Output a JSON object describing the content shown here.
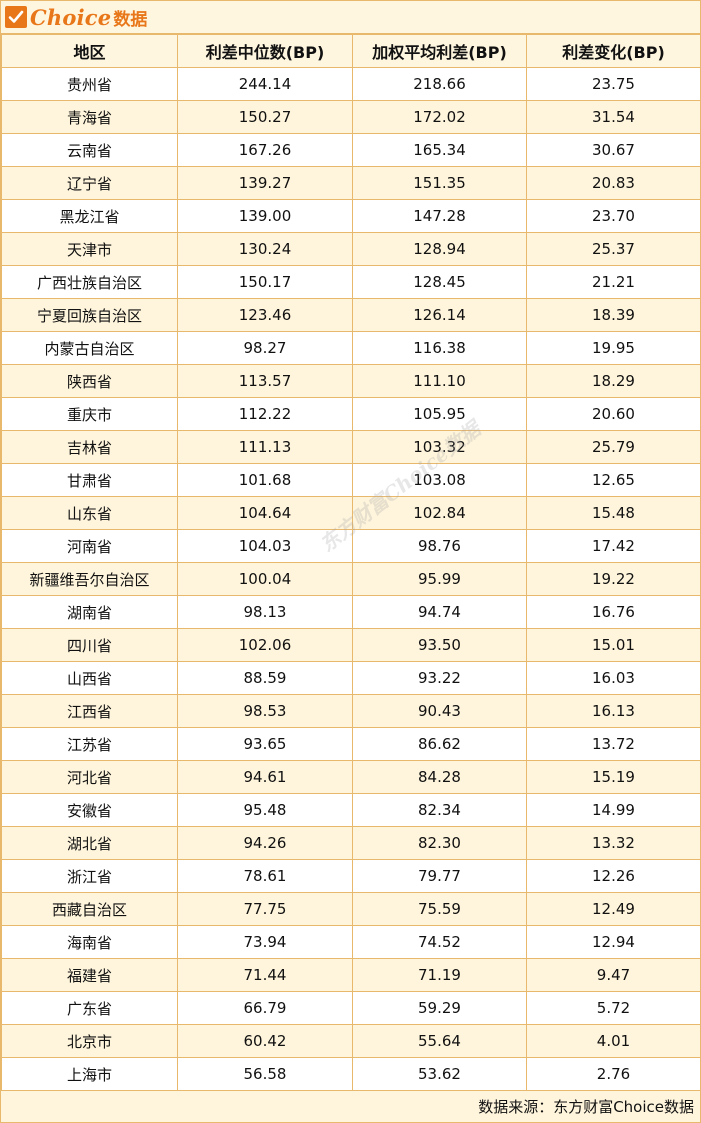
{
  "brand": {
    "name": "Choice",
    "suffix": "数据"
  },
  "table": {
    "headers": [
      "地区",
      "利差中位数(BP)",
      "加权平均利差(BP)",
      "利差变化(BP)"
    ],
    "rows": [
      [
        "贵州省",
        "244.14",
        "218.66",
        "23.75"
      ],
      [
        "青海省",
        "150.27",
        "172.02",
        "31.54"
      ],
      [
        "云南省",
        "167.26",
        "165.34",
        "30.67"
      ],
      [
        "辽宁省",
        "139.27",
        "151.35",
        "20.83"
      ],
      [
        "黑龙江省",
        "139.00",
        "147.28",
        "23.70"
      ],
      [
        "天津市",
        "130.24",
        "128.94",
        "25.37"
      ],
      [
        "广西壮族自治区",
        "150.17",
        "128.45",
        "21.21"
      ],
      [
        "宁夏回族自治区",
        "123.46",
        "126.14",
        "18.39"
      ],
      [
        "内蒙古自治区",
        "98.27",
        "116.38",
        "19.95"
      ],
      [
        "陕西省",
        "113.57",
        "111.10",
        "18.29"
      ],
      [
        "重庆市",
        "112.22",
        "105.95",
        "20.60"
      ],
      [
        "吉林省",
        "111.13",
        "103.32",
        "25.79"
      ],
      [
        "甘肃省",
        "101.68",
        "103.08",
        "12.65"
      ],
      [
        "山东省",
        "104.64",
        "102.84",
        "15.48"
      ],
      [
        "河南省",
        "104.03",
        "98.76",
        "17.42"
      ],
      [
        "新疆维吾尔自治区",
        "100.04",
        "95.99",
        "19.22"
      ],
      [
        "湖南省",
        "98.13",
        "94.74",
        "16.76"
      ],
      [
        "四川省",
        "102.06",
        "93.50",
        "15.01"
      ],
      [
        "山西省",
        "88.59",
        "93.22",
        "16.03"
      ],
      [
        "江西省",
        "98.53",
        "90.43",
        "16.13"
      ],
      [
        "江苏省",
        "93.65",
        "86.62",
        "13.72"
      ],
      [
        "河北省",
        "94.61",
        "84.28",
        "15.19"
      ],
      [
        "安徽省",
        "95.48",
        "82.34",
        "14.99"
      ],
      [
        "湖北省",
        "94.26",
        "82.30",
        "13.32"
      ],
      [
        "浙江省",
        "78.61",
        "79.77",
        "12.26"
      ],
      [
        "西藏自治区",
        "77.75",
        "75.59",
        "12.49"
      ],
      [
        "海南省",
        "73.94",
        "74.52",
        "12.94"
      ],
      [
        "福建省",
        "71.44",
        "71.19",
        "9.47"
      ],
      [
        "广东省",
        "66.79",
        "59.29",
        "5.72"
      ],
      [
        "北京市",
        "60.42",
        "55.64",
        "4.01"
      ],
      [
        "上海市",
        "56.58",
        "53.62",
        "2.76"
      ]
    ]
  },
  "footer": {
    "source": "数据来源：东方财富Choice数据"
  },
  "colors": {
    "brand": "#e8771a",
    "border": "#e8b86d",
    "stripe": "#fff5dc"
  }
}
